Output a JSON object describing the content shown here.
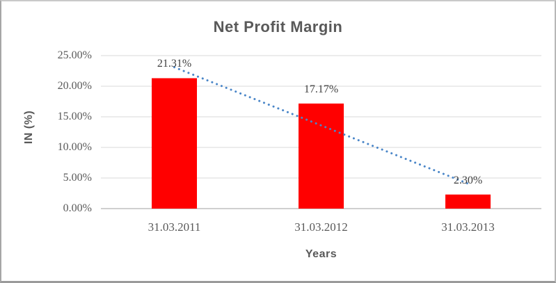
{
  "chart_data": {
    "type": "bar",
    "title": "Net Profit Margin",
    "xlabel": "Years",
    "ylabel": "IN (%)",
    "categories": [
      "31.03.2011",
      "31.03.2012",
      "31.03.2013"
    ],
    "values": [
      21.31,
      17.17,
      2.3
    ],
    "data_labels": [
      "21.31%",
      "17.17%",
      "2.30%"
    ],
    "ytick_labels": [
      "0.00%",
      "5.00%",
      "10.00%",
      "15.00%",
      "20.00%",
      "25.00%"
    ],
    "ylim": [
      0,
      25
    ],
    "ytick_step": 5,
    "grid": true,
    "legend": "none",
    "bar_color": "#ff0000",
    "gridline_color": "#d9d9d9",
    "axis_line_color": "#bfbfbf",
    "text_color": "#595959",
    "data_label_color": "#404040",
    "trendline": {
      "type": "linear",
      "style": "dotted",
      "color": "#4a86c8",
      "start_value": 23.1,
      "end_value": 4.09
    }
  }
}
